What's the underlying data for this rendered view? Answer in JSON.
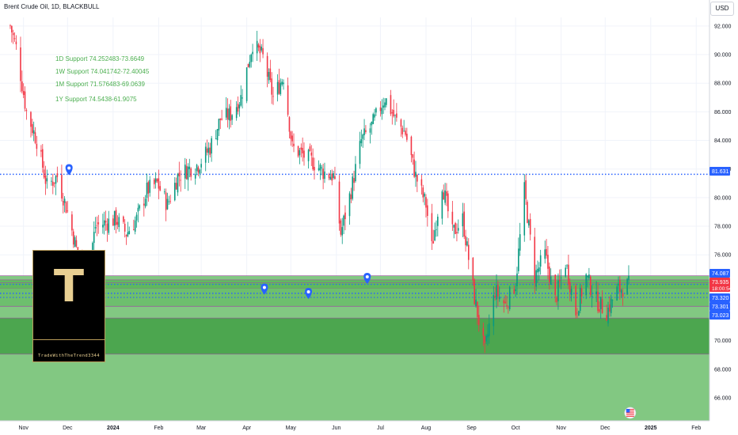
{
  "header": {
    "title": "Brent Crude Oil, 1D, BLACKBULL",
    "currency": "USD"
  },
  "watermark": {
    "letter": "T",
    "handle": "TradeWithTheTrend3344"
  },
  "colors": {
    "up": "#089981",
    "down": "#f23645",
    "band_light": "#82c882",
    "band_mid": "#5cb85c",
    "band_dark": "#43a047",
    "band_line": "#9c4fa0",
    "dotted": "#2962ff",
    "annotation": "#4caf50",
    "marker": "#2962ff",
    "price_red": "#f23645"
  },
  "chart_data": {
    "type": "candlestick",
    "x_ticks": [
      "Nov",
      "Dec",
      "2024",
      "Feb",
      "Mar",
      "Apr",
      "May",
      "Jun",
      "Jul",
      "Aug",
      "Sep",
      "Oct",
      "Nov",
      "Dec",
      "2025",
      "Feb"
    ],
    "y_ticks": [
      "92.000",
      "90.000",
      "88.000",
      "86.000",
      "84.000",
      "82.000",
      "80.000",
      "78.000",
      "76.000",
      "70.000",
      "68.000",
      "66.000"
    ],
    "ylim": [
      64.4,
      92.6
    ],
    "annotations": [
      "1D Support 74.252483-73.6649",
      "1W Support 74.041742-72.40045",
      "1M Support 71.576483-69.0639",
      "1Y Support 74.5438-61.9075"
    ],
    "zones": [
      {
        "top": 74.54,
        "bottom": 61.91
      },
      {
        "top": 74.25,
        "bottom": 73.66
      },
      {
        "top": 74.04,
        "bottom": 72.4
      },
      {
        "top": 71.58,
        "bottom": 69.06
      }
    ],
    "dotted_levels": [
      81.631,
      73.935,
      73.32,
      73.301,
      73.023
    ],
    "price_labels": [
      {
        "text": "81.631",
        "value": 81.631,
        "style": "blue"
      },
      {
        "text": "74.087",
        "value": 74.087,
        "style": "blue"
      },
      {
        "text": "73.935",
        "value": 73.935,
        "style": "red"
      },
      {
        "text": "18:00:54",
        "value": 73.935,
        "style": "red-sub"
      },
      {
        "text": "73.320",
        "value": 73.32,
        "style": "blue"
      },
      {
        "text": "73.301",
        "value": 73.301,
        "style": "blue"
      },
      {
        "text": "73.023",
        "value": 73.023,
        "style": "blue"
      }
    ],
    "series": [
      {
        "date": "2023-10-23",
        "close": 92.0
      },
      {
        "date": "2023-10-27",
        "close": 90.5
      },
      {
        "date": "2023-11-03",
        "close": 86.0
      },
      {
        "date": "2023-11-10",
        "close": 84.0
      },
      {
        "date": "2023-11-17",
        "close": 80.8
      },
      {
        "date": "2023-11-24",
        "close": 81.5
      },
      {
        "date": "2023-12-01",
        "close": 79.0
      },
      {
        "date": "2023-12-08",
        "close": 76.0
      },
      {
        "date": "2023-12-13",
        "close": 73.8
      },
      {
        "date": "2023-12-20",
        "close": 78.0
      },
      {
        "date": "2024-01-03",
        "close": 78.5
      },
      {
        "date": "2024-01-10",
        "close": 77.5
      },
      {
        "date": "2024-01-17",
        "close": 78.5
      },
      {
        "date": "2024-01-24",
        "close": 80.5
      },
      {
        "date": "2024-01-31",
        "close": 81.0
      },
      {
        "date": "2024-02-07",
        "close": 79.5
      },
      {
        "date": "2024-02-14",
        "close": 81.5
      },
      {
        "date": "2024-02-21",
        "close": 82.0
      },
      {
        "date": "2024-02-28",
        "close": 82.3
      },
      {
        "date": "2024-03-07",
        "close": 83.5
      },
      {
        "date": "2024-03-14",
        "close": 85.5
      },
      {
        "date": "2024-03-21",
        "close": 85.8
      },
      {
        "date": "2024-03-28",
        "close": 87.0
      },
      {
        "date": "2024-04-05",
        "close": 90.8
      },
      {
        "date": "2024-04-12",
        "close": 89.8
      },
      {
        "date": "2024-04-19",
        "close": 87.0
      },
      {
        "date": "2024-04-26",
        "close": 88.5
      },
      {
        "date": "2024-05-02",
        "close": 83.5
      },
      {
        "date": "2024-05-09",
        "close": 83.0
      },
      {
        "date": "2024-05-16",
        "close": 82.5
      },
      {
        "date": "2024-05-23",
        "close": 81.8
      },
      {
        "date": "2024-05-30",
        "close": 81.5
      },
      {
        "date": "2024-06-04",
        "close": 77.5
      },
      {
        "date": "2024-06-11",
        "close": 80.5
      },
      {
        "date": "2024-06-18",
        "close": 84.0
      },
      {
        "date": "2024-06-25",
        "close": 85.0
      },
      {
        "date": "2024-07-04",
        "close": 87.0
      },
      {
        "date": "2024-07-11",
        "close": 85.5
      },
      {
        "date": "2024-07-18",
        "close": 84.5
      },
      {
        "date": "2024-07-25",
        "close": 81.5
      },
      {
        "date": "2024-08-01",
        "close": 79.5
      },
      {
        "date": "2024-08-05",
        "close": 76.5
      },
      {
        "date": "2024-08-12",
        "close": 81.0
      },
      {
        "date": "2024-08-19",
        "close": 77.5
      },
      {
        "date": "2024-08-26",
        "close": 78.5
      },
      {
        "date": "2024-09-03",
        "close": 73.0
      },
      {
        "date": "2024-09-10",
        "close": 69.2
      },
      {
        "date": "2024-09-17",
        "close": 73.5
      },
      {
        "date": "2024-09-24",
        "close": 72.5
      },
      {
        "date": "2024-10-01",
        "close": 74.0
      },
      {
        "date": "2024-10-07",
        "close": 80.5
      },
      {
        "date": "2024-10-14",
        "close": 74.5
      },
      {
        "date": "2024-10-21",
        "close": 76.0
      },
      {
        "date": "2024-10-28",
        "close": 72.8
      },
      {
        "date": "2024-11-04",
        "close": 75.5
      },
      {
        "date": "2024-11-11",
        "close": 72.0
      },
      {
        "date": "2024-11-18",
        "close": 74.5
      },
      {
        "date": "2024-11-25",
        "close": 72.8
      },
      {
        "date": "2024-12-02",
        "close": 72.0
      },
      {
        "date": "2024-12-09",
        "close": 73.5
      },
      {
        "date": "2024-12-17",
        "close": 73.9
      }
    ]
  }
}
